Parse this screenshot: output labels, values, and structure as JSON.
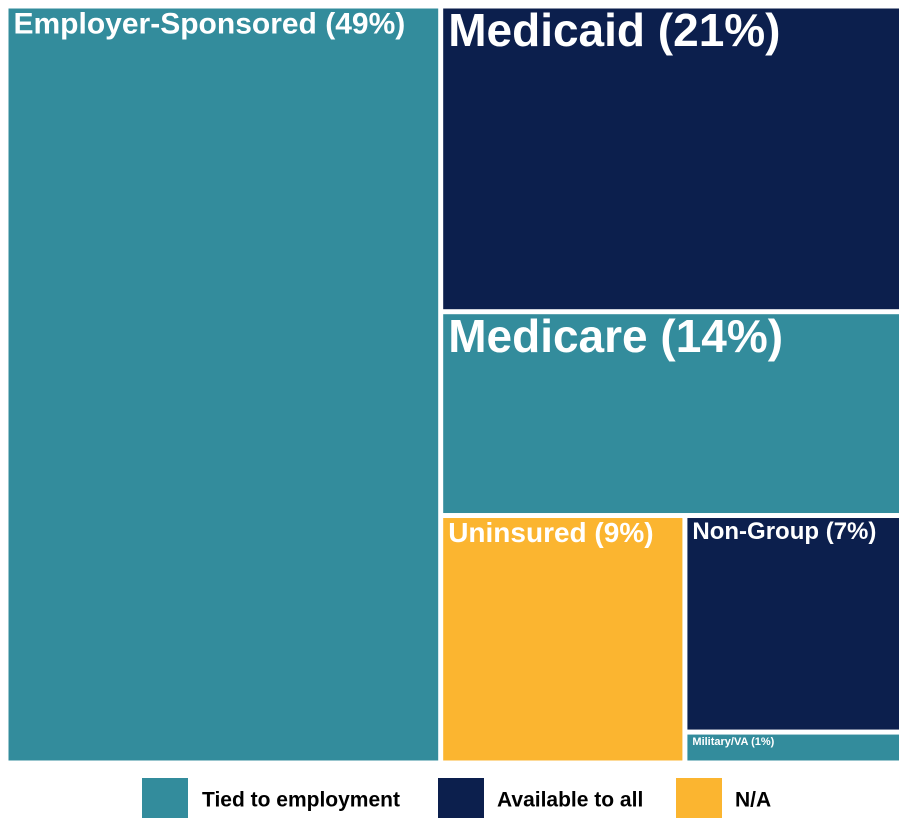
{
  "chart_data": {
    "type": "treemap",
    "categories": [
      "Employer-Sponsored (49%)",
      "Medicaid (21%)",
      "Medicare (14%)",
      "Uninsured (9%)",
      "Non-Group (7%)",
      "Military/VA (1%)"
    ],
    "values": [
      49,
      21,
      14,
      9,
      7,
      1
    ],
    "groups": [
      0,
      1,
      0,
      2,
      1,
      0
    ],
    "legend": [
      {
        "name": "Tied to employment",
        "color": "#338c9c"
      },
      {
        "name": "Available to all",
        "color": "#0c1f4d"
      },
      {
        "name": "N/A",
        "color": "#fbb530"
      }
    ]
  }
}
